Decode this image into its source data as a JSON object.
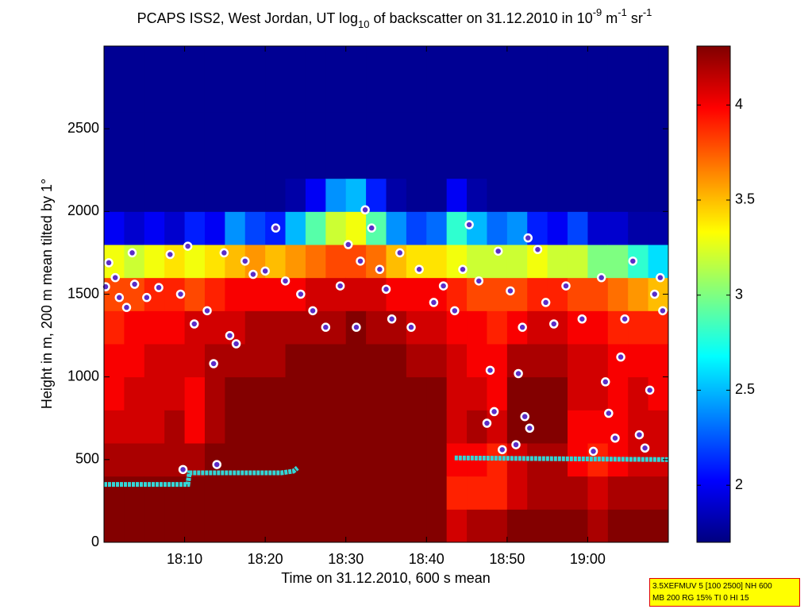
{
  "chart_data": {
    "type": "heatmap",
    "title_runs": [
      {
        "text": "PCAPS ISS2, West Jordan, UT log"
      },
      {
        "text": "10",
        "shift": "sub"
      },
      {
        "text": " of backscatter on 31.12.2010 in 10"
      },
      {
        "text": "-9",
        "shift": "super"
      },
      {
        "text": " m"
      },
      {
        "text": "-1",
        "shift": "super"
      },
      {
        "text": " sr"
      },
      {
        "text": "-1",
        "shift": "super"
      }
    ],
    "xlabel": "Time on 31.12.2010, 600 s mean",
    "ylabel": "Height in m, 200 m mean tilted by 1°",
    "xlim": [
      1080,
      1150
    ],
    "xticks": [
      {
        "value": 1090,
        "label": "18:10"
      },
      {
        "value": 1100,
        "label": "18:20"
      },
      {
        "value": 1110,
        "label": "18:30"
      },
      {
        "value": 1120,
        "label": "18:40"
      },
      {
        "value": 1130,
        "label": "18:50"
      },
      {
        "value": 1140,
        "label": "19:00"
      }
    ],
    "ylim": [
      0,
      3000
    ],
    "yticks": [
      0,
      500,
      1000,
      1500,
      2000,
      2500
    ],
    "colormap": "jet",
    "clim": [
      1.7,
      4.31
    ],
    "cticks": [
      2,
      2.5,
      3,
      3.5,
      4
    ],
    "x_edges": [
      1080,
      1082.5,
      1085,
      1087.5,
      1090,
      1092.5,
      1095,
      1097.5,
      1100,
      1102.5,
      1105,
      1107.5,
      1110,
      1112.5,
      1115,
      1117.5,
      1120,
      1122.5,
      1125,
      1127.5,
      1130,
      1132.5,
      1135,
      1137.5,
      1140,
      1142.5,
      1145,
      1147.5,
      1150
    ],
    "y_edges": [
      0,
      200,
      400,
      600,
      800,
      1000,
      1200,
      1400,
      1600,
      1800,
      2000,
      2200,
      2400,
      2600,
      2800,
      3000
    ],
    "z": [
      [
        4.3,
        4.3,
        4.2,
        4.1,
        4.0,
        4.0,
        3.9,
        3.8,
        3.3,
        2.0,
        1.75,
        1.75,
        1.75,
        1.75,
        1.75
      ],
      [
        4.3,
        4.3,
        4.2,
        4.1,
        4.1,
        4.0,
        4.0,
        3.8,
        3.2,
        1.9,
        1.75,
        1.75,
        1.75,
        1.75,
        1.75
      ],
      [
        4.3,
        4.3,
        4.2,
        4.1,
        4.1,
        4.1,
        4.0,
        3.9,
        3.3,
        2.0,
        1.75,
        1.75,
        1.75,
        1.75,
        1.75
      ],
      [
        4.3,
        4.3,
        4.2,
        4.2,
        4.1,
        4.1,
        4.0,
        3.9,
        3.4,
        1.9,
        1.75,
        1.75,
        1.75,
        1.75,
        1.75
      ],
      [
        4.3,
        4.3,
        4.2,
        4.0,
        4.0,
        4.1,
        4.1,
        3.8,
        3.3,
        2.1,
        1.75,
        1.75,
        1.75,
        1.75,
        1.75
      ],
      [
        4.3,
        4.3,
        4.3,
        4.2,
        4.2,
        4.2,
        4.1,
        3.9,
        3.4,
        2.0,
        1.75,
        1.75,
        1.75,
        1.75,
        1.75
      ],
      [
        4.3,
        4.3,
        4.3,
        4.3,
        4.3,
        4.2,
        4.1,
        4.0,
        3.5,
        2.4,
        1.75,
        1.75,
        1.75,
        1.75,
        1.75
      ],
      [
        4.3,
        4.3,
        4.3,
        4.3,
        4.3,
        4.2,
        4.2,
        4.0,
        3.6,
        2.2,
        1.75,
        1.75,
        1.75,
        1.75,
        1.75
      ],
      [
        4.3,
        4.3,
        4.3,
        4.3,
        4.3,
        4.2,
        4.2,
        4.0,
        3.5,
        2.1,
        1.75,
        1.75,
        1.75,
        1.75,
        1.75
      ],
      [
        4.3,
        4.3,
        4.3,
        4.3,
        4.3,
        4.3,
        4.2,
        4.0,
        3.6,
        2.5,
        1.8,
        1.75,
        1.75,
        1.75,
        1.75
      ],
      [
        4.3,
        4.3,
        4.3,
        4.3,
        4.3,
        4.3,
        4.2,
        4.1,
        3.7,
        2.9,
        2.0,
        1.75,
        1.75,
        1.75,
        1.75
      ],
      [
        4.3,
        4.3,
        4.3,
        4.3,
        4.3,
        4.3,
        4.2,
        4.1,
        3.8,
        3.2,
        2.4,
        1.75,
        1.75,
        1.75,
        1.75
      ],
      [
        4.3,
        4.3,
        4.3,
        4.3,
        4.3,
        4.3,
        4.3,
        4.1,
        3.8,
        3.3,
        2.5,
        1.75,
        1.75,
        1.75,
        1.75
      ],
      [
        4.3,
        4.3,
        4.3,
        4.3,
        4.3,
        4.3,
        4.2,
        4.1,
        3.7,
        2.9,
        2.1,
        1.75,
        1.75,
        1.75,
        1.75
      ],
      [
        4.3,
        4.3,
        4.3,
        4.3,
        4.3,
        4.3,
        4.2,
        4.0,
        3.5,
        2.4,
        1.8,
        1.75,
        1.75,
        1.75,
        1.75
      ],
      [
        4.3,
        4.3,
        4.3,
        4.3,
        4.3,
        4.2,
        4.1,
        4.0,
        3.4,
        2.2,
        1.75,
        1.75,
        1.75,
        1.75,
        1.75
      ],
      [
        4.3,
        4.3,
        4.3,
        4.3,
        4.3,
        4.2,
        4.1,
        4.0,
        3.4,
        2.3,
        1.75,
        1.75,
        1.75,
        1.75,
        1.75
      ],
      [
        4.1,
        3.9,
        4.0,
        4.1,
        4.1,
        4.1,
        4.0,
        3.9,
        3.3,
        2.8,
        2.0,
        1.75,
        1.75,
        1.75,
        1.75
      ],
      [
        4.2,
        3.9,
        4.0,
        4.2,
        4.1,
        4.0,
        4.0,
        3.8,
        3.2,
        2.5,
        1.8,
        1.75,
        1.75,
        1.75,
        1.75
      ],
      [
        4.2,
        3.9,
        3.9,
        4.1,
        4.0,
        4.0,
        3.9,
        3.8,
        3.2,
        2.3,
        1.75,
        1.75,
        1.75,
        1.75,
        1.75
      ],
      [
        4.3,
        4.1,
        4.1,
        4.3,
        4.3,
        4.2,
        4.0,
        3.8,
        3.2,
        2.4,
        1.75,
        1.75,
        1.75,
        1.75,
        1.75
      ],
      [
        4.3,
        4.2,
        4.2,
        4.3,
        4.3,
        4.2,
        4.1,
        3.9,
        3.3,
        2.1,
        1.75,
        1.75,
        1.75,
        1.75,
        1.75
      ],
      [
        4.3,
        4.2,
        4.2,
        4.3,
        4.3,
        4.2,
        4.1,
        3.9,
        3.2,
        2.0,
        1.75,
        1.75,
        1.75,
        1.75,
        1.75
      ],
      [
        4.3,
        4.2,
        4.0,
        4.0,
        4.1,
        4.1,
        4.0,
        3.8,
        3.2,
        2.2,
        1.75,
        1.75,
        1.75,
        1.75,
        1.75
      ],
      [
        4.2,
        4.1,
        3.9,
        4.0,
        4.1,
        4.1,
        4.0,
        3.8,
        3.0,
        1.9,
        1.75,
        1.75,
        1.75,
        1.75,
        1.75
      ],
      [
        4.3,
        4.2,
        4.0,
        4.0,
        4.0,
        4.0,
        3.9,
        3.7,
        3.0,
        1.9,
        1.75,
        1.75,
        1.75,
        1.75,
        1.75
      ],
      [
        4.3,
        4.2,
        4.1,
        4.1,
        4.1,
        4.0,
        3.9,
        3.6,
        2.8,
        1.8,
        1.75,
        1.75,
        1.75,
        1.75,
        1.75
      ],
      [
        4.3,
        4.2,
        4.1,
        4.1,
        4.0,
        4.0,
        3.9,
        3.5,
        2.6,
        1.8,
        1.75,
        1.75,
        1.75,
        1.75,
        1.75
      ]
    ],
    "points": {
      "x": [
        1080.2,
        1080.6,
        1081.4,
        1081.9,
        1082.8,
        1083.8,
        1083.5,
        1085.3,
        1086.8,
        1088.2,
        1089.5,
        1090.4,
        1089.8,
        1091.2,
        1092.8,
        1093.6,
        1094.0,
        1094.9,
        1095.6,
        1096.4,
        1097.5,
        1098.5,
        1100.0,
        1101.3,
        1102.5,
        1104.4,
        1105.9,
        1107.5,
        1109.3,
        1110.3,
        1111.3,
        1111.8,
        1112.4,
        1113.2,
        1114.2,
        1115.0,
        1115.7,
        1116.7,
        1118.1,
        1119.1,
        1120.9,
        1122.1,
        1123.5,
        1124.5,
        1125.3,
        1126.5,
        1127.5,
        1127.9,
        1128.4,
        1128.9,
        1129.4,
        1130.4,
        1131.1,
        1131.4,
        1131.9,
        1132.2,
        1132.6,
        1132.8,
        1133.8,
        1134.8,
        1135.8,
        1137.3,
        1139.3,
        1140.7,
        1141.7,
        1142.2,
        1142.6,
        1143.4,
        1144.1,
        1144.6,
        1145.6,
        1146.4,
        1147.1,
        1147.7,
        1148.3,
        1149.0,
        1149.3
      ],
      "y": [
        1545,
        1690,
        1600,
        1480,
        1420,
        1560,
        1750,
        1480,
        1540,
        1740,
        1500,
        1790,
        440,
        1320,
        1400,
        1080,
        470,
        1750,
        1250,
        1200,
        1700,
        1620,
        1640,
        1900,
        1580,
        1500,
        1400,
        1300,
        1550,
        1800,
        1300,
        1700,
        2010,
        1900,
        1650,
        1530,
        1350,
        1750,
        1300,
        1650,
        1450,
        1550,
        1400,
        1650,
        1920,
        1580,
        720,
        1040,
        790,
        1760,
        560,
        1520,
        590,
        1020,
        1300,
        760,
        1840,
        690,
        1770,
        1450,
        1320,
        1550,
        1350,
        550,
        1600,
        970,
        780,
        630,
        1120,
        1350,
        1700,
        650,
        570,
        920,
        1500,
        1600,
        1400
      ]
    },
    "mixing_height": {
      "x": [
        1080,
        1090.4,
        1090.6,
        1102,
        1103.5,
        1104,
        1106,
        1123.5,
        1150
      ],
      "y": [
        350,
        350,
        420,
        420,
        430,
        450,
        null,
        510,
        500
      ]
    },
    "note_lines": [
      "3.5XEFMUV 5 [100 2500] NH 600",
      "MB 200 RG 15% TI 0 HI 15"
    ]
  }
}
